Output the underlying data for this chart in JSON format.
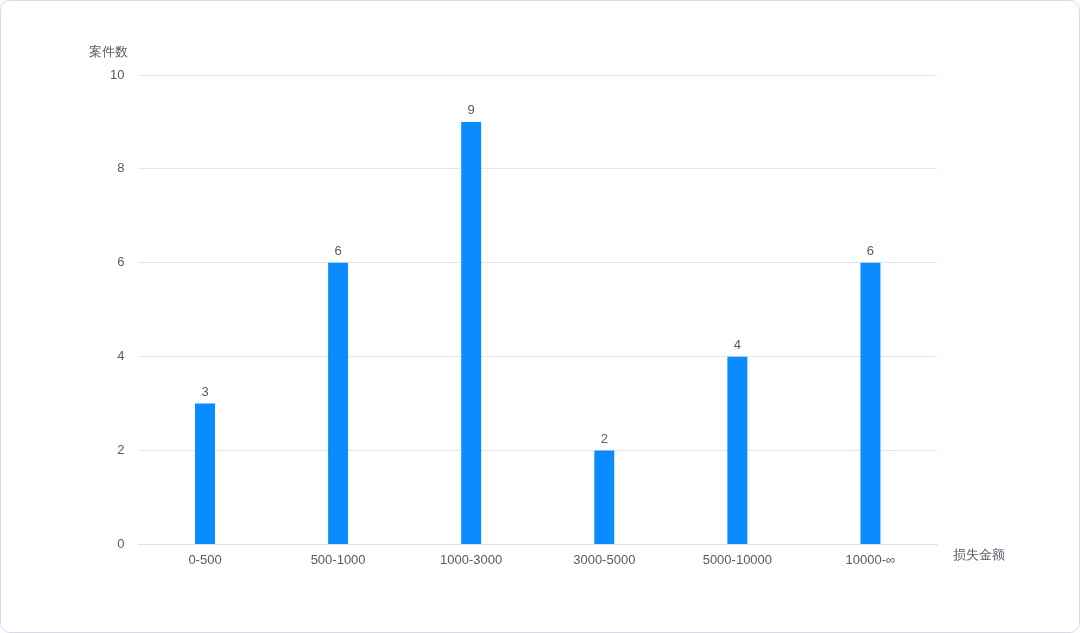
{
  "chart_data": {
    "type": "bar",
    "xlabel": "损失金额",
    "ylabel": "案件数",
    "categories": [
      "0-500",
      "500-1000",
      "1000-3000",
      "3000-5000",
      "5000-10000",
      "10000-∞"
    ],
    "values": [
      3,
      6,
      9,
      2,
      4,
      6
    ],
    "color": "#0a8cff",
    "ylim": [
      0,
      10
    ],
    "yticks": [
      0,
      2,
      4,
      6,
      8,
      10
    ],
    "grid": "y",
    "data_labels": true
  }
}
